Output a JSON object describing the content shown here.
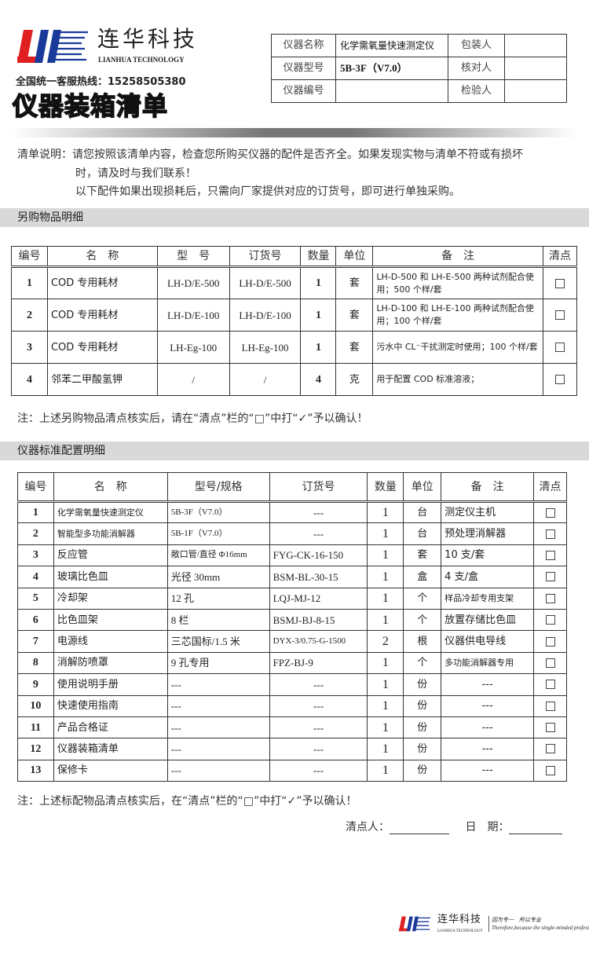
{
  "brand": {
    "name_cn": "连华科技",
    "name_en": "LIANHUA TECHNOLOGY",
    "colors": {
      "red": "#e02020",
      "blue": "#1a3a9a"
    }
  },
  "hotline": "全国统一客服热线：15258505380",
  "doc_title": "仪器装箱清单",
  "header_table": [
    {
      "label": "仪器名称",
      "value": "化学需氧量快速测定仪",
      "label2": "包装人",
      "value2": ""
    },
    {
      "label": "仪器型号",
      "value": "5B-3F（V7.0）",
      "label2": "核对人",
      "value2": ""
    },
    {
      "label": "仪器编号",
      "value": "",
      "label2": "检验人",
      "value2": ""
    }
  ],
  "description": {
    "line1": "清单说明：请您按照该清单内容，检查您所购买仪器的配件是否齐全。如果发现实物与清单不符或有损坏",
    "line2": "时，请及时与我们联系！",
    "line3": "以下配件如果出现损耗后，只需向厂家提供对应的订货号，即可进行单独采购。"
  },
  "section1": {
    "title": "另购物品明细",
    "headers": [
      "编号",
      "名　称",
      "型　号",
      "订货号",
      "数量",
      "单位",
      "备　注",
      "清点"
    ],
    "rows": [
      [
        "1",
        "COD 专用耗材",
        "LH-D/E-500",
        "LH-D/E-500",
        "1",
        "套",
        "LH-D-500 和 LH-E-500 两种试剂配合使用；500 个样/套"
      ],
      [
        "2",
        "COD 专用耗材",
        "LH-D/E-100",
        "LH-D/E-100",
        "1",
        "套",
        "LH-D-100 和 LH-E-100 两种试剂配合使用；100 个样/套"
      ],
      [
        "3",
        "COD 专用耗材",
        "LH-Eg-100",
        "LH-Eg-100",
        "1",
        "套",
        "污水中 CL⁻干扰测定时使用；100 个样/套"
      ],
      [
        "4",
        "邻苯二甲酸氢钾",
        "/",
        "/",
        "4",
        "克",
        "用于配置 COD 标准溶液；"
      ]
    ],
    "note": "注：上述另购物品清点核实后，请在“清点”栏的“□”中打“✓”予以确认！"
  },
  "section2": {
    "title": "仪器标准配置明细",
    "headers": [
      "编号",
      "名　称",
      "型号/规格",
      "订货号",
      "数量",
      "单位",
      "备　注",
      "清点"
    ],
    "rows": [
      [
        "1",
        "化学需氧量快速测定仪",
        "5B-3F（V7.0）",
        "---",
        "1",
        "台",
        "测定仪主机"
      ],
      [
        "2",
        "智能型多功能消解器",
        "5B-1F（V7.0）",
        "---",
        "1",
        "台",
        "预处理消解器"
      ],
      [
        "3",
        "反应管",
        "敞口管/直径 Φ16mm",
        "FYG-CK-16-150",
        "1",
        "套",
        "10 支/套"
      ],
      [
        "4",
        "玻璃比色皿",
        "光径 30mm",
        "BSM-BL-30-15",
        "1",
        "盒",
        "4 支/盒"
      ],
      [
        "5",
        "冷却架",
        "12 孔",
        "LQJ-MJ-12",
        "1",
        "个",
        "样品冷却专用支架"
      ],
      [
        "6",
        "比色皿架",
        "8 栏",
        "BSMJ-BJ-8-15",
        "1",
        "个",
        "放置存储比色皿"
      ],
      [
        "7",
        "电源线",
        "三芯国标/1.5 米",
        "DYX-3/0.75-G-1500",
        "2",
        "根",
        "仪器供电导线"
      ],
      [
        "8",
        "消解防喷罩",
        "9 孔专用",
        "FPZ-BJ-9",
        "1",
        "个",
        "多功能消解器专用"
      ],
      [
        "9",
        "使用说明手册",
        "---",
        "---",
        "1",
        "份",
        "---"
      ],
      [
        "10",
        "快速使用指南",
        "---",
        "---",
        "1",
        "份",
        "---"
      ],
      [
        "11",
        "产品合格证",
        "---",
        "---",
        "1",
        "份",
        "---"
      ],
      [
        "12",
        "仪器装箱清单",
        "---",
        "---",
        "1",
        "份",
        "---"
      ],
      [
        "13",
        "保修卡",
        "---",
        "---",
        "1",
        "份",
        "---"
      ]
    ],
    "note": "注：上述标配物品清点核实后，在“清点”栏的“□”中打“✓”予以确认！"
  },
  "signature": {
    "checker_label": "清点人：",
    "date_label": "日　期："
  },
  "footer": {
    "name_cn": "连华科技",
    "name_en": "LIANHUA TECHNOLOGY",
    "slogan_cn": "因为专一　所以专业",
    "slogan_en": "Therefore,because the single-minded professio"
  }
}
